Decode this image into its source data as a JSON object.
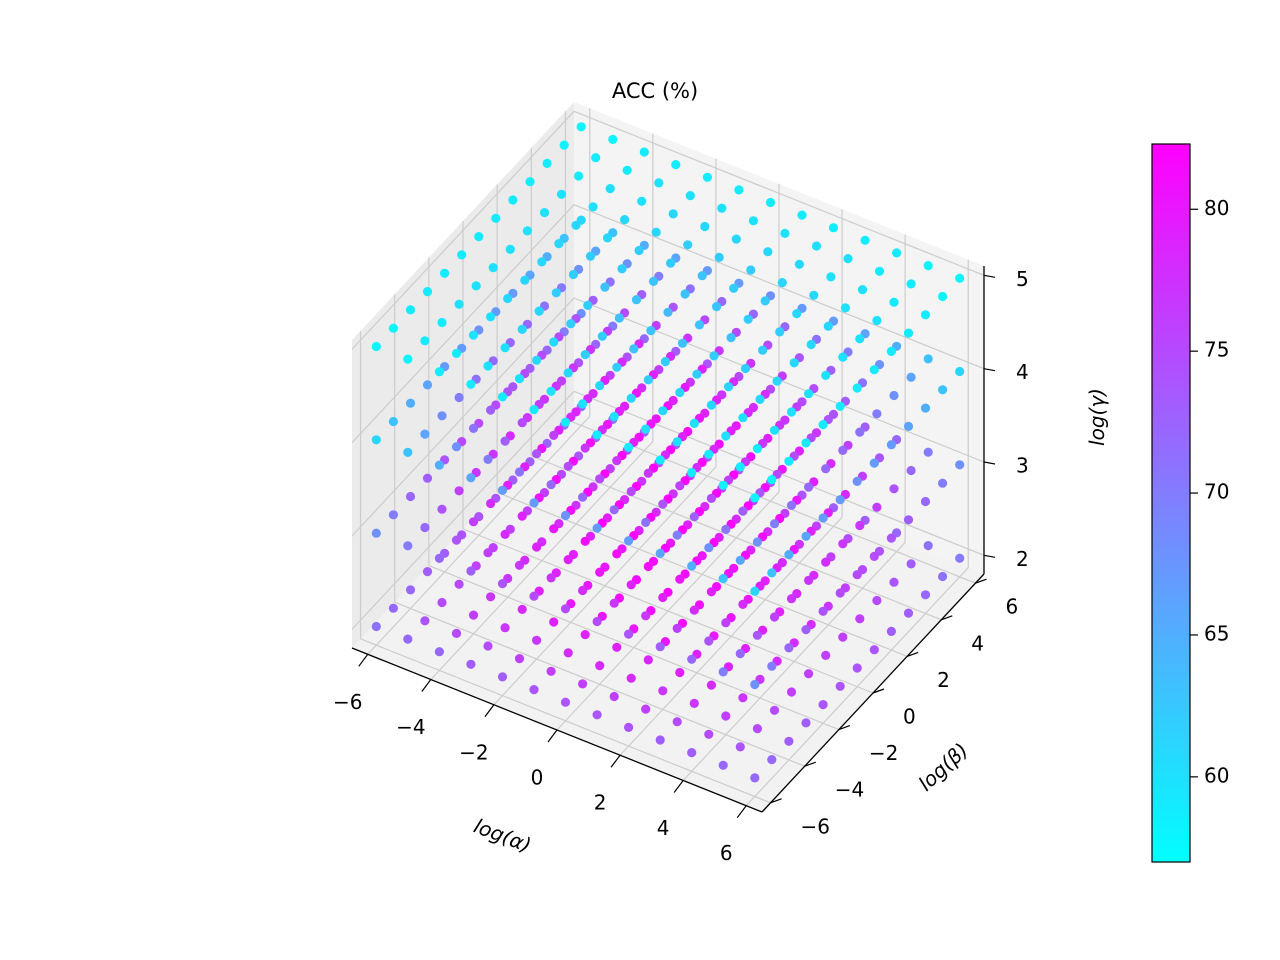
{
  "chart_data": {
    "type": "scatter",
    "projection": "3d",
    "title": "ACC (%)",
    "xlabel": "log(α)",
    "ylabel": "log(β)",
    "zlabel": "log(γ)",
    "x": [
      -6,
      -5,
      -4,
      -3,
      -2,
      -1,
      0,
      1,
      2,
      3,
      4,
      5,
      6
    ],
    "y": [
      -6,
      -5,
      -4,
      -3,
      -2,
      -1,
      0,
      1,
      2,
      3,
      4,
      5,
      6
    ],
    "z": [
      2,
      3,
      4,
      5
    ],
    "xticks": [
      "−6",
      "−4",
      "−2",
      "0",
      "2",
      "4",
      "6"
    ],
    "yticks": [
      "−6",
      "−4",
      "−2",
      "0",
      "2",
      "4",
      "6"
    ],
    "zticks": [
      "2",
      "3",
      "4",
      "5"
    ],
    "xlim": [
      -6.5,
      6.5
    ],
    "ylim": [
      -6.5,
      6.5
    ],
    "zlim": [
      1.8,
      5.1
    ],
    "grid": true,
    "colormap": "cool",
    "colorbar": {
      "range": [
        57,
        82.3
      ],
      "ticks": [
        "60",
        "65",
        "70",
        "75",
        "80"
      ],
      "tick_values": [
        60,
        65,
        70,
        75,
        80
      ],
      "color_low": "#00ffff",
      "color_high": "#ff00ff"
    },
    "values": [
      [
        [
          71,
          72,
          72,
          73,
          73,
          74,
          74,
          74,
          74,
          73,
          73,
          72,
          72
        ],
        [
          72,
          74,
          75,
          75,
          76,
          76,
          76,
          76,
          76,
          75,
          75,
          74,
          72
        ],
        [
          72,
          75,
          76,
          77,
          77,
          78,
          78,
          78,
          77,
          77,
          76,
          75,
          73
        ],
        [
          73,
          75,
          77,
          78,
          79,
          79,
          79,
          79,
          79,
          78,
          77,
          75,
          73
        ],
        [
          73,
          76,
          77,
          79,
          80,
          80,
          80,
          80,
          79,
          79,
          77,
          76,
          74
        ],
        [
          74,
          76,
          78,
          79,
          80,
          81,
          81,
          81,
          80,
          79,
          78,
          76,
          74
        ],
        [
          74,
          76,
          78,
          79,
          80,
          81,
          82,
          81,
          80,
          79,
          78,
          76,
          74
        ],
        [
          74,
          76,
          78,
          79,
          80,
          81,
          81,
          81,
          80,
          79,
          78,
          76,
          74
        ],
        [
          73,
          76,
          77,
          79,
          79,
          80,
          80,
          80,
          79,
          78,
          77,
          76,
          73
        ],
        [
          73,
          75,
          77,
          78,
          78,
          79,
          79,
          79,
          78,
          78,
          76,
          75,
          73
        ],
        [
          72,
          74,
          76,
          77,
          77,
          78,
          78,
          78,
          77,
          76,
          75,
          74,
          72
        ],
        [
          72,
          73,
          75,
          75,
          76,
          76,
          76,
          76,
          76,
          75,
          74,
          73,
          71
        ],
        [
          71,
          72,
          73,
          73,
          74,
          74,
          74,
          74,
          73,
          73,
          72,
          71,
          70
        ]
      ],
      [
        [
          68,
          70,
          72,
          73,
          74,
          75,
          75,
          75,
          74,
          73,
          72,
          70,
          68
        ],
        [
          70,
          72,
          74,
          76,
          77,
          77,
          78,
          77,
          77,
          76,
          74,
          72,
          70
        ],
        [
          72,
          74,
          76,
          78,
          79,
          79,
          80,
          79,
          79,
          78,
          76,
          74,
          72
        ],
        [
          73,
          76,
          78,
          79,
          80,
          81,
          81,
          81,
          80,
          79,
          78,
          76,
          73
        ],
        [
          74,
          77,
          79,
          80,
          81,
          82,
          82,
          82,
          81,
          80,
          79,
          77,
          74
        ],
        [
          75,
          77,
          79,
          81,
          82,
          82,
          82,
          82,
          82,
          81,
          79,
          77,
          75
        ],
        [
          75,
          78,
          80,
          81,
          82,
          82,
          82,
          82,
          82,
          81,
          80,
          78,
          75
        ],
        [
          75,
          77,
          79,
          81,
          82,
          82,
          82,
          82,
          82,
          81,
          79,
          77,
          75
        ],
        [
          74,
          77,
          79,
          80,
          81,
          82,
          82,
          82,
          81,
          80,
          79,
          77,
          74
        ],
        [
          73,
          76,
          78,
          79,
          80,
          81,
          81,
          81,
          80,
          79,
          78,
          76,
          73
        ],
        [
          72,
          74,
          76,
          78,
          79,
          79,
          80,
          79,
          79,
          78,
          76,
          74,
          72
        ],
        [
          70,
          72,
          74,
          76,
          77,
          77,
          78,
          77,
          77,
          76,
          74,
          72,
          70
        ],
        [
          68,
          70,
          72,
          73,
          74,
          75,
          75,
          75,
          74,
          73,
          72,
          70,
          68
        ]
      ],
      [
        [
          61,
          63,
          65,
          66,
          67,
          67,
          68,
          67,
          67,
          66,
          65,
          63,
          61
        ],
        [
          63,
          66,
          68,
          70,
          71,
          72,
          72,
          72,
          71,
          70,
          68,
          66,
          63
        ],
        [
          65,
          68,
          71,
          73,
          74,
          75,
          75,
          75,
          74,
          73,
          71,
          68,
          65
        ],
        [
          66,
          70,
          73,
          75,
          76,
          77,
          77,
          77,
          76,
          75,
          73,
          70,
          66
        ],
        [
          67,
          71,
          74,
          76,
          78,
          78,
          79,
          78,
          78,
          76,
          74,
          71,
          67
        ],
        [
          67,
          72,
          75,
          77,
          78,
          79,
          80,
          79,
          78,
          77,
          75,
          72,
          67
        ],
        [
          68,
          72,
          75,
          77,
          79,
          80,
          80,
          80,
          79,
          77,
          75,
          72,
          68
        ],
        [
          67,
          72,
          75,
          77,
          78,
          79,
          80,
          79,
          78,
          77,
          75,
          72,
          67
        ],
        [
          67,
          71,
          74,
          76,
          78,
          78,
          79,
          78,
          78,
          76,
          74,
          71,
          67
        ],
        [
          66,
          70,
          73,
          75,
          76,
          77,
          77,
          77,
          76,
          75,
          73,
          70,
          66
        ],
        [
          65,
          68,
          71,
          73,
          74,
          75,
          75,
          75,
          74,
          73,
          71,
          68,
          65
        ],
        [
          63,
          66,
          68,
          70,
          71,
          72,
          72,
          72,
          71,
          70,
          68,
          66,
          63
        ],
        [
          61,
          63,
          65,
          66,
          67,
          67,
          68,
          67,
          67,
          66,
          65,
          63,
          61
        ]
      ],
      [
        [
          58,
          58,
          59,
          59,
          59,
          59,
          59,
          59,
          59,
          59,
          59,
          58,
          58
        ],
        [
          58,
          59,
          59,
          60,
          60,
          60,
          60,
          60,
          60,
          60,
          59,
          59,
          58
        ],
        [
          59,
          59,
          60,
          60,
          61,
          61,
          61,
          61,
          61,
          60,
          60,
          59,
          59
        ],
        [
          59,
          60,
          60,
          61,
          61,
          62,
          62,
          62,
          61,
          61,
          60,
          60,
          59
        ],
        [
          59,
          60,
          61,
          61,
          62,
          62,
          63,
          62,
          62,
          61,
          61,
          60,
          59
        ],
        [
          59,
          60,
          61,
          62,
          62,
          63,
          63,
          63,
          62,
          62,
          61,
          60,
          59
        ],
        [
          59,
          60,
          61,
          62,
          63,
          63,
          64,
          63,
          63,
          62,
          61,
          60,
          59
        ],
        [
          59,
          60,
          61,
          62,
          62,
          63,
          63,
          63,
          62,
          62,
          61,
          60,
          59
        ],
        [
          59,
          60,
          61,
          61,
          62,
          62,
          63,
          62,
          62,
          61,
          61,
          60,
          59
        ],
        [
          59,
          60,
          60,
          61,
          61,
          62,
          62,
          62,
          61,
          61,
          60,
          60,
          59
        ],
        [
          59,
          59,
          60,
          60,
          61,
          61,
          61,
          61,
          61,
          60,
          60,
          59,
          59
        ],
        [
          58,
          59,
          59,
          60,
          60,
          60,
          60,
          60,
          60,
          60,
          59,
          59,
          58
        ],
        [
          58,
          58,
          59,
          59,
          59,
          59,
          59,
          59,
          59,
          59,
          59,
          58,
          58
        ]
      ]
    ]
  }
}
